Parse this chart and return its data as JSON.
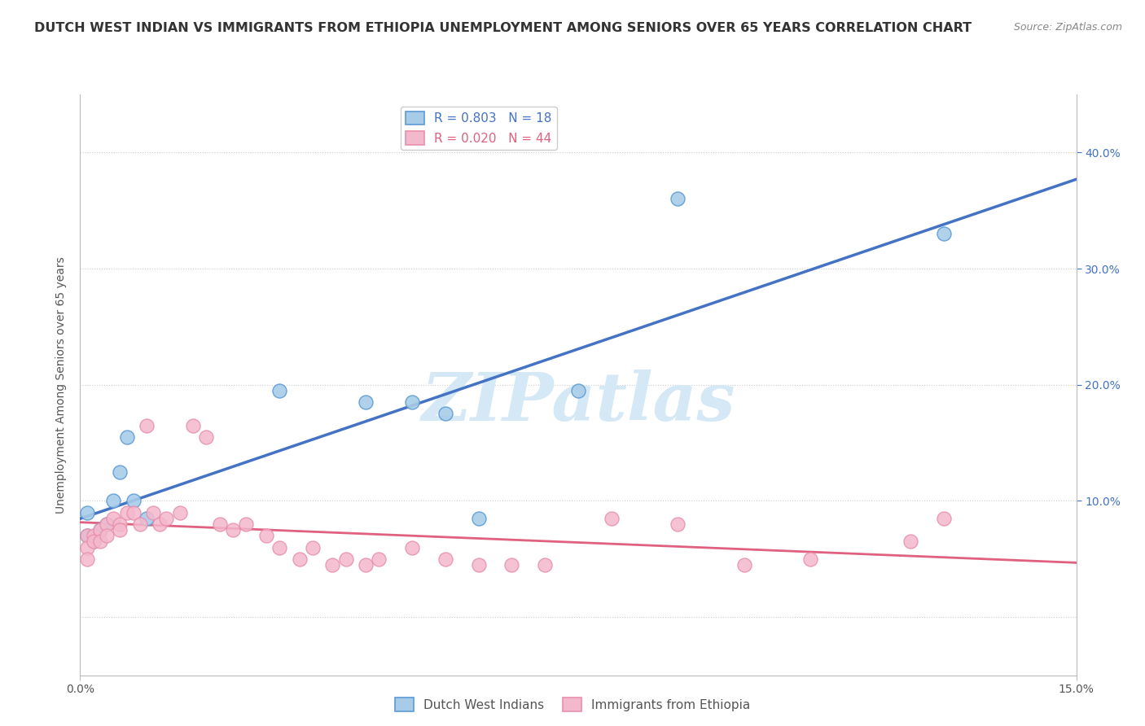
{
  "title": "DUTCH WEST INDIAN VS IMMIGRANTS FROM ETHIOPIA UNEMPLOYMENT AMONG SENIORS OVER 65 YEARS CORRELATION CHART",
  "source": "Source: ZipAtlas.com",
  "ylabel": "Unemployment Among Seniors over 65 years",
  "xlim": [
    0.0,
    0.15
  ],
  "ylim": [
    -0.05,
    0.45
  ],
  "yticks": [
    0.0,
    0.1,
    0.2,
    0.3,
    0.4
  ],
  "ytick_labels_right": [
    "10.0%",
    "20.0%",
    "30.0%",
    "40.0%"
  ],
  "xticks": [
    0.0,
    0.15
  ],
  "xtick_labels": [
    "0.0%",
    "15.0%"
  ],
  "series1": {
    "name": "Dutch West Indians",
    "color": "#a8cce8",
    "color_edge": "#5b9bd5",
    "color_line": "#4472c4",
    "R": 0.803,
    "N": 18,
    "x": [
      0.001,
      0.001,
      0.002,
      0.003,
      0.004,
      0.005,
      0.006,
      0.007,
      0.008,
      0.01,
      0.03,
      0.043,
      0.05,
      0.055,
      0.06,
      0.075,
      0.09,
      0.13
    ],
    "y": [
      0.07,
      0.09,
      0.065,
      0.075,
      0.08,
      0.1,
      0.125,
      0.155,
      0.1,
      0.085,
      0.195,
      0.185,
      0.185,
      0.175,
      0.085,
      0.195,
      0.36,
      0.33
    ]
  },
  "series2": {
    "name": "Immigrants from Ethiopia",
    "color": "#f4b8cc",
    "color_edge": "#e88fac",
    "color_line": "#e06080",
    "R": 0.02,
    "N": 44,
    "x": [
      0.001,
      0.001,
      0.001,
      0.002,
      0.002,
      0.003,
      0.003,
      0.004,
      0.004,
      0.005,
      0.006,
      0.006,
      0.007,
      0.008,
      0.009,
      0.01,
      0.011,
      0.012,
      0.013,
      0.015,
      0.017,
      0.019,
      0.021,
      0.023,
      0.025,
      0.028,
      0.03,
      0.033,
      0.035,
      0.038,
      0.04,
      0.043,
      0.045,
      0.05,
      0.055,
      0.06,
      0.065,
      0.07,
      0.08,
      0.09,
      0.1,
      0.11,
      0.125,
      0.13
    ],
    "y": [
      0.07,
      0.06,
      0.05,
      0.07,
      0.065,
      0.075,
      0.065,
      0.08,
      0.07,
      0.085,
      0.08,
      0.075,
      0.09,
      0.09,
      0.08,
      0.165,
      0.09,
      0.08,
      0.085,
      0.09,
      0.165,
      0.155,
      0.08,
      0.075,
      0.08,
      0.07,
      0.06,
      0.05,
      0.06,
      0.045,
      0.05,
      0.045,
      0.05,
      0.06,
      0.05,
      0.045,
      0.045,
      0.045,
      0.085,
      0.08,
      0.045,
      0.05,
      0.065,
      0.085
    ]
  },
  "watermark_text": "ZIPatlas",
  "watermark_color": "#d5e8f5",
  "background_color": "#ffffff",
  "grid_color": "#cccccc",
  "title_color": "#333333",
  "title_fontsize": 11.5,
  "legend_fontsize": 11,
  "axis_label_fontsize": 10,
  "tick_fontsize": 10,
  "source_color": "#888888"
}
